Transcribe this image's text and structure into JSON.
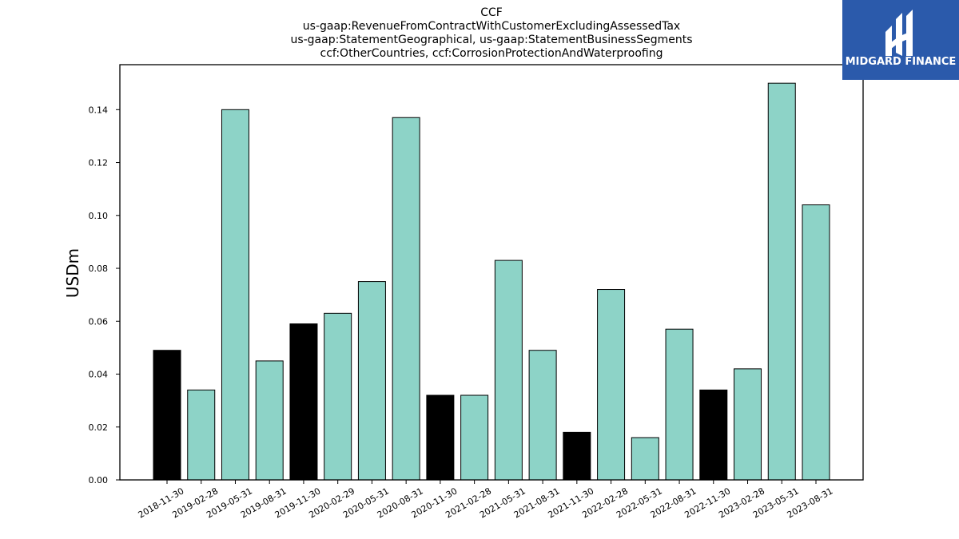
{
  "chart_data": {
    "type": "bar",
    "title_lines": [
      "CCF",
      "us-gaap:RevenueFromContractWithCustomerExcludingAssessedTax",
      "us-gaap:StatementGeographical, us-gaap:StatementBusinessSegments",
      "ccf:OtherCountries, ccf:CorrosionProtectionAndWaterproofing"
    ],
    "ylabel": "USDm",
    "xlabel": "",
    "ylim": [
      0,
      0.157
    ],
    "yticks": [
      "0.00",
      "0.02",
      "0.04",
      "0.06",
      "0.08",
      "0.10",
      "0.12",
      "0.14"
    ],
    "categories": [
      "2018-11-30",
      "2019-02-28",
      "2019-05-31",
      "2019-08-31",
      "2019-11-30",
      "2020-02-29",
      "2020-05-31",
      "2020-08-31",
      "2020-11-30",
      "2021-02-28",
      "2021-05-31",
      "2021-08-31",
      "2021-11-30",
      "2022-02-28",
      "2022-05-31",
      "2022-08-31",
      "2022-11-30",
      "2023-02-28",
      "2023-05-31",
      "2023-08-31"
    ],
    "values": [
      0.049,
      0.034,
      0.14,
      0.045,
      0.059,
      0.063,
      0.075,
      0.137,
      0.032,
      0.032,
      0.083,
      0.049,
      0.018,
      0.072,
      0.016,
      0.057,
      0.034,
      0.042,
      0.15,
      0.104
    ],
    "bar_colors": [
      "#000000",
      "#8dd3c7",
      "#8dd3c7",
      "#8dd3c7",
      "#000000",
      "#8dd3c7",
      "#8dd3c7",
      "#8dd3c7",
      "#000000",
      "#8dd3c7",
      "#8dd3c7",
      "#8dd3c7",
      "#000000",
      "#8dd3c7",
      "#8dd3c7",
      "#8dd3c7",
      "#000000",
      "#8dd3c7",
      "#8dd3c7",
      "#8dd3c7"
    ],
    "grid": false,
    "legend": "none"
  },
  "logo": {
    "text": "MIDGARD FINANCE",
    "background": "#2b5aab"
  }
}
